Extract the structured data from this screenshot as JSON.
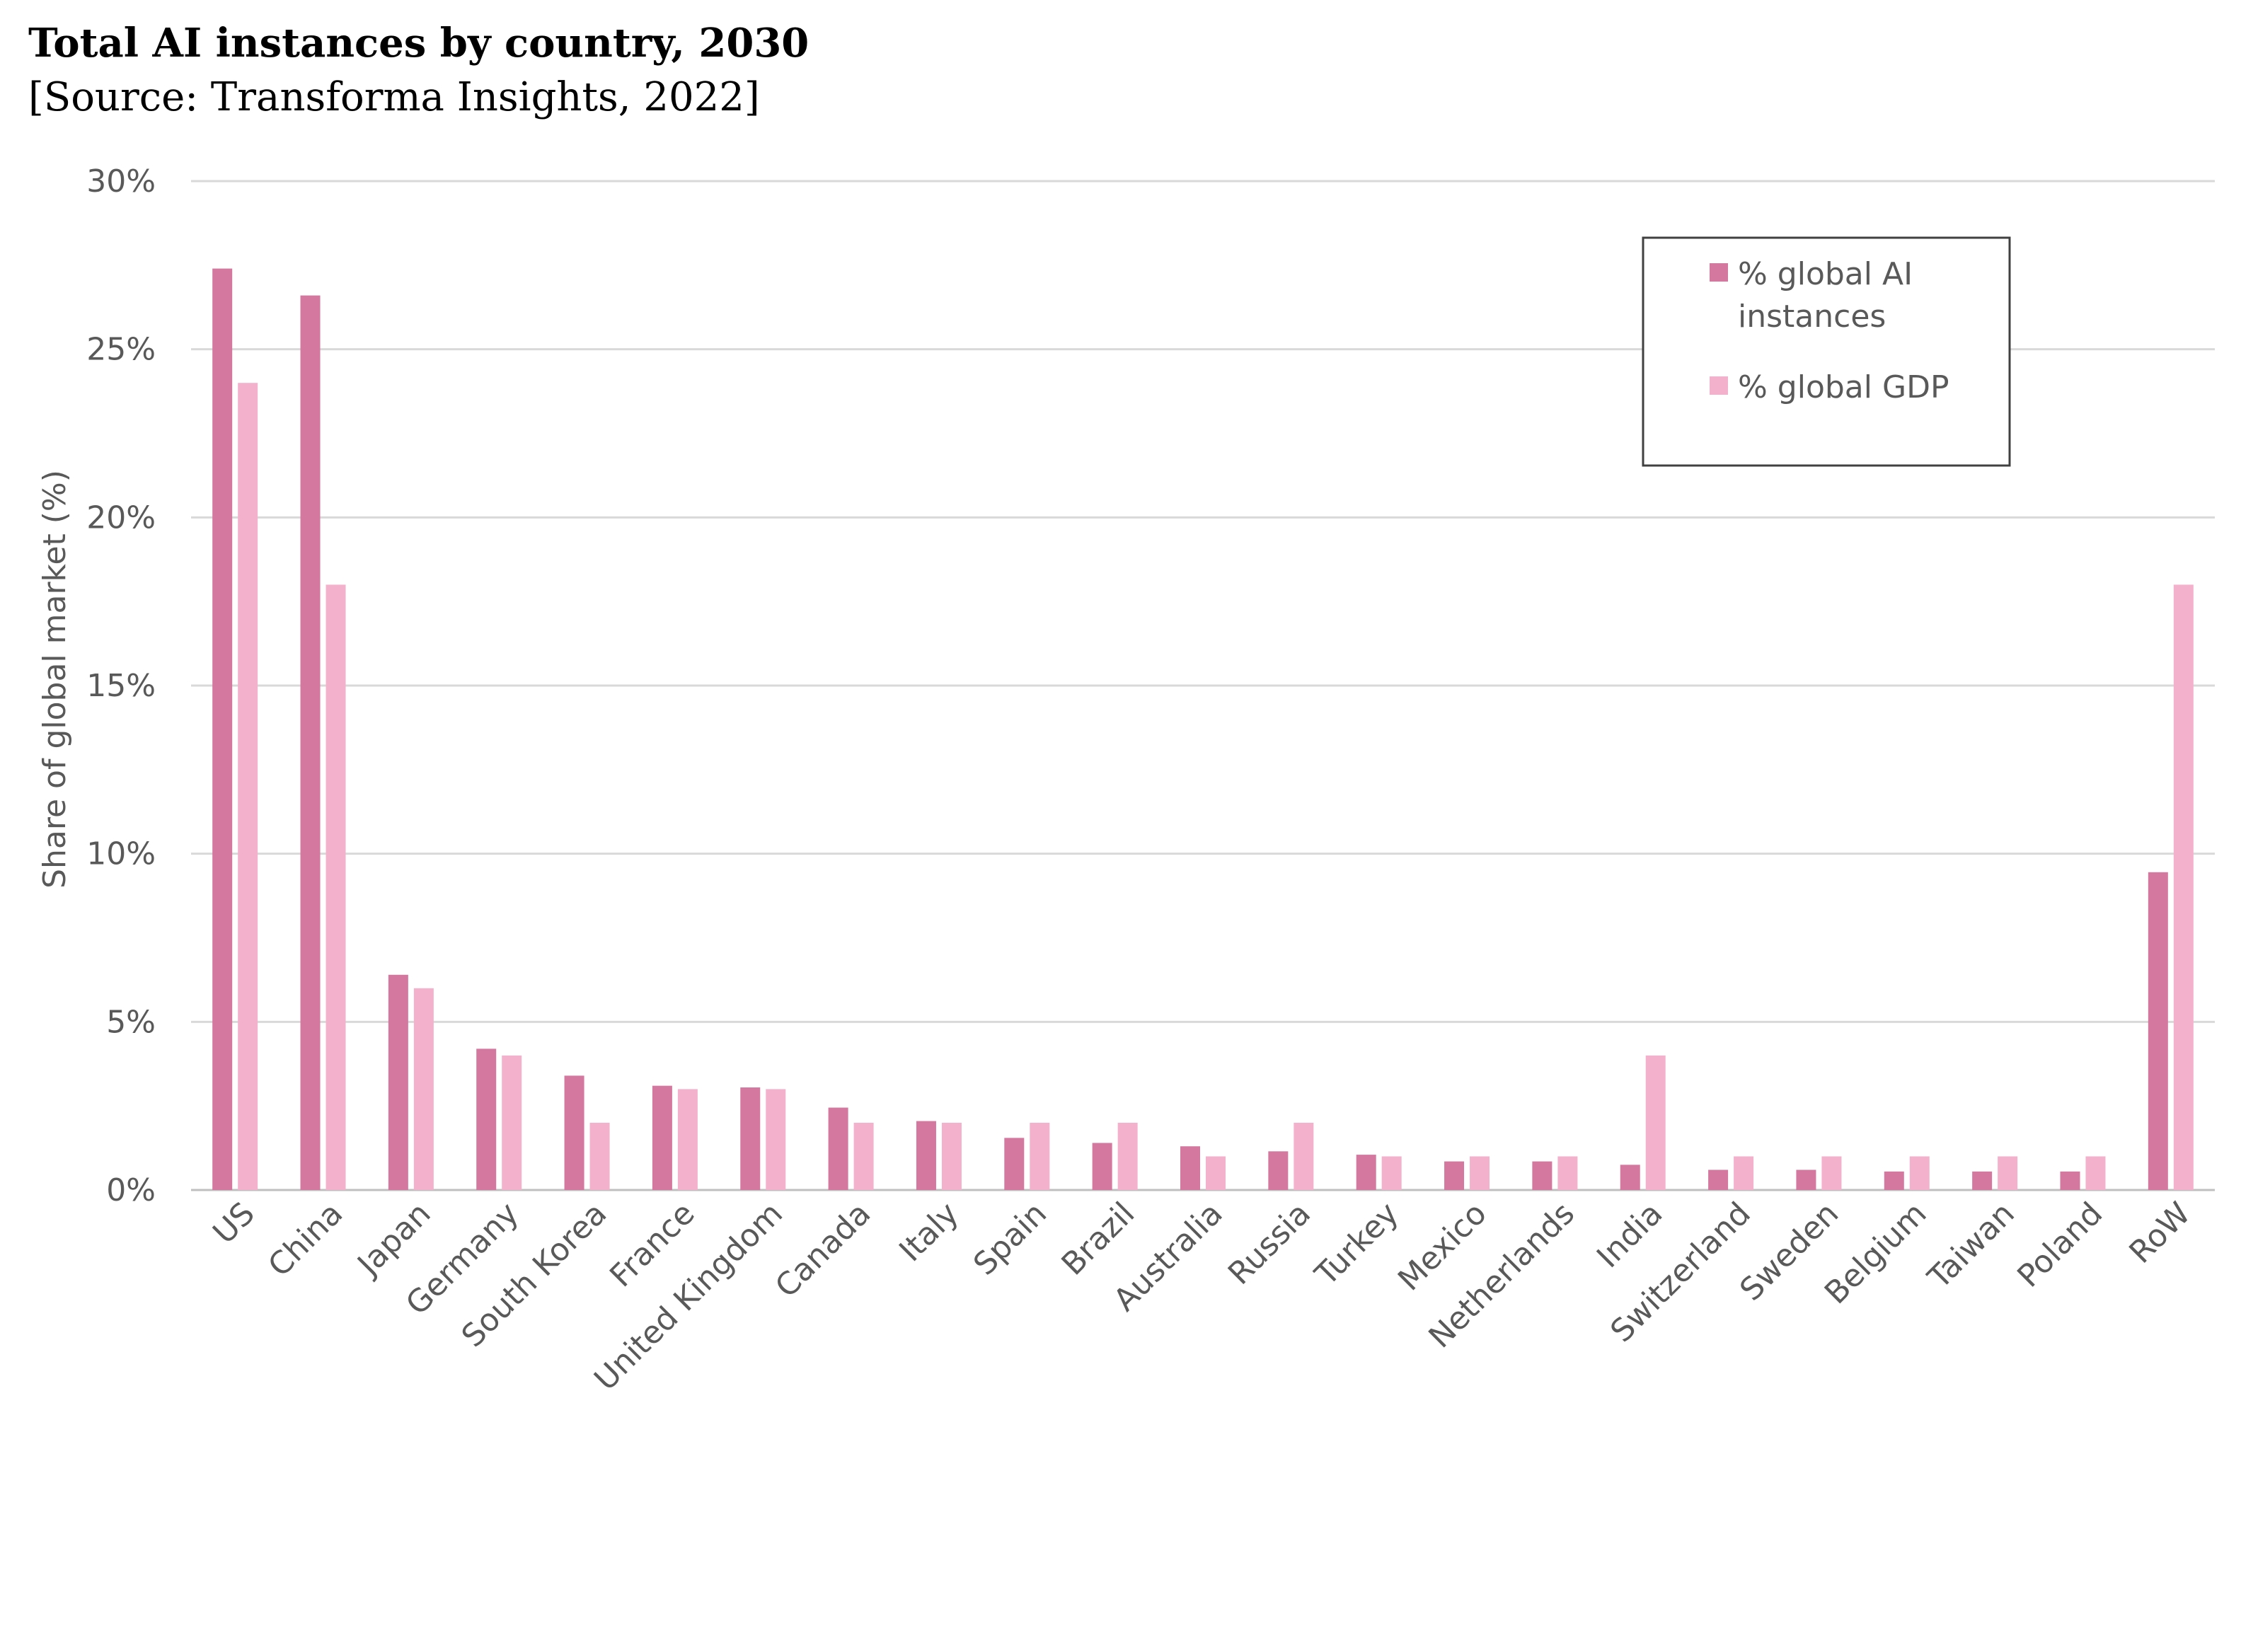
{
  "chart_data": {
    "type": "bar",
    "title": "Total AI instances by country, 2030",
    "subtitle": "[Source: Transforma Insights, 2022]",
    "xlabel": "",
    "ylabel": "Share of global market (%)",
    "ylim": [
      0,
      30
    ],
    "yticks": [
      "0%",
      "5%",
      "10%",
      "15%",
      "20%",
      "25%",
      "30%"
    ],
    "grid": true,
    "legend_position": "top-right",
    "categories": [
      "US",
      "China",
      "Japan",
      "Germany",
      "South Korea",
      "France",
      "United Kingdom",
      "Canada",
      "Italy",
      "Spain",
      "Brazil",
      "Australia",
      "Russia",
      "Turkey",
      "Mexico",
      "Netherlands",
      "India",
      "Switzerland",
      "Sweden",
      "Belgium",
      "Taiwan",
      "Poland",
      "RoW"
    ],
    "series": [
      {
        "name": "% global AI instances",
        "color": "#d4789f",
        "values": [
          27.4,
          26.6,
          6.4,
          4.2,
          3.4,
          3.1,
          3.05,
          2.45,
          2.05,
          1.55,
          1.4,
          1.3,
          1.15,
          1.05,
          0.85,
          0.85,
          0.75,
          0.6,
          0.6,
          0.55,
          0.55,
          0.55,
          9.45
        ]
      },
      {
        "name": "% global GDP",
        "color": "#f4b1cc",
        "values": [
          24.0,
          18.0,
          6.0,
          4.0,
          2.0,
          3.0,
          3.0,
          2.0,
          2.0,
          2.0,
          2.0,
          1.0,
          2.0,
          1.0,
          1.0,
          1.0,
          4.0,
          1.0,
          1.0,
          1.0,
          1.0,
          1.0,
          18.0
        ]
      }
    ],
    "legend": {
      "ai_label_line1": "% global AI",
      "ai_label_line2": "instances",
      "gdp_label": "% global GDP"
    }
  }
}
